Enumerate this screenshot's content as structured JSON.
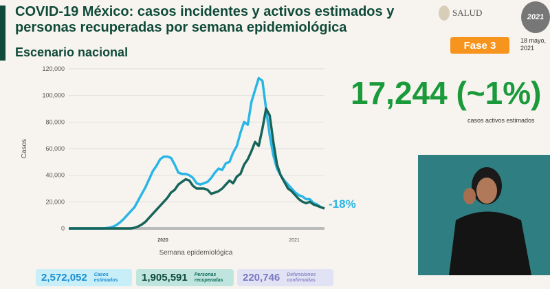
{
  "header": {
    "title": "COVID-19 México: casos incidentes y activos estimados y personas recuperadas por semana epidemiológica",
    "subtitle": "Escenario nacional",
    "logo": "SALUD",
    "badge_year": "2021",
    "phase": "Fase 3",
    "date": "18 mayo, 2021"
  },
  "highlight": {
    "value": "17,244 (~1%)",
    "label": "casos activos estimados"
  },
  "chart_data": {
    "type": "line",
    "ylabel": "Casos",
    "xlabel": "Semana epidemiológica",
    "x_tick_labels": [
      "2020",
      "2021"
    ],
    "y_ticks": [
      "0",
      "20,000",
      "40,000",
      "60,000",
      "80,000",
      "100,000",
      "120,000"
    ],
    "ylim": [
      0,
      120000
    ],
    "annotation": "-18%",
    "series": [
      {
        "name": "Casos incidentes estimados",
        "color": "#29b6e6",
        "values": [
          0,
          0,
          0,
          0,
          0,
          0,
          0,
          0,
          0,
          0,
          200,
          500,
          1200,
          2500,
          4500,
          7000,
          10000,
          13000,
          16000,
          21000,
          26000,
          31000,
          37000,
          43000,
          47000,
          52000,
          54000,
          54000,
          53000,
          48000,
          42000,
          41000,
          41000,
          40000,
          38000,
          34000,
          33000,
          34000,
          35000,
          38000,
          42000,
          45000,
          44000,
          49000,
          50000,
          57000,
          62000,
          72000,
          80000,
          78000,
          95000,
          104000,
          113000,
          111000,
          90000,
          70000,
          55000,
          45000,
          40000,
          36000,
          33000,
          30000,
          27000,
          25000,
          24000,
          22000,
          22000,
          19000,
          18000,
          16000,
          15000
        ]
      },
      {
        "name": "Casos activos estimados",
        "color": "#17645a",
        "values": [
          0,
          0,
          0,
          0,
          0,
          0,
          0,
          0,
          0,
          0,
          0,
          0,
          0,
          0,
          0,
          0,
          0,
          0,
          500,
          1500,
          3000,
          5000,
          8000,
          11000,
          14000,
          17000,
          20000,
          23000,
          27000,
          29000,
          33000,
          35000,
          37000,
          36000,
          32000,
          30000,
          30000,
          30000,
          29000,
          26000,
          27000,
          28000,
          30000,
          33000,
          36000,
          34000,
          39000,
          41000,
          48000,
          52000,
          58000,
          65000,
          62000,
          75000,
          90000,
          85000,
          65000,
          48000,
          40000,
          35000,
          30000,
          28000,
          25000,
          22000,
          20000,
          19000,
          20000,
          18000,
          17000,
          16000,
          15000
        ]
      }
    ]
  },
  "stats": [
    {
      "value": "2,572,052",
      "label": "Casos estimados"
    },
    {
      "value": "1,905,591",
      "label": "Personas recuperadas"
    },
    {
      "value": "220,746",
      "label": "Defunciones confirmadas"
    }
  ]
}
